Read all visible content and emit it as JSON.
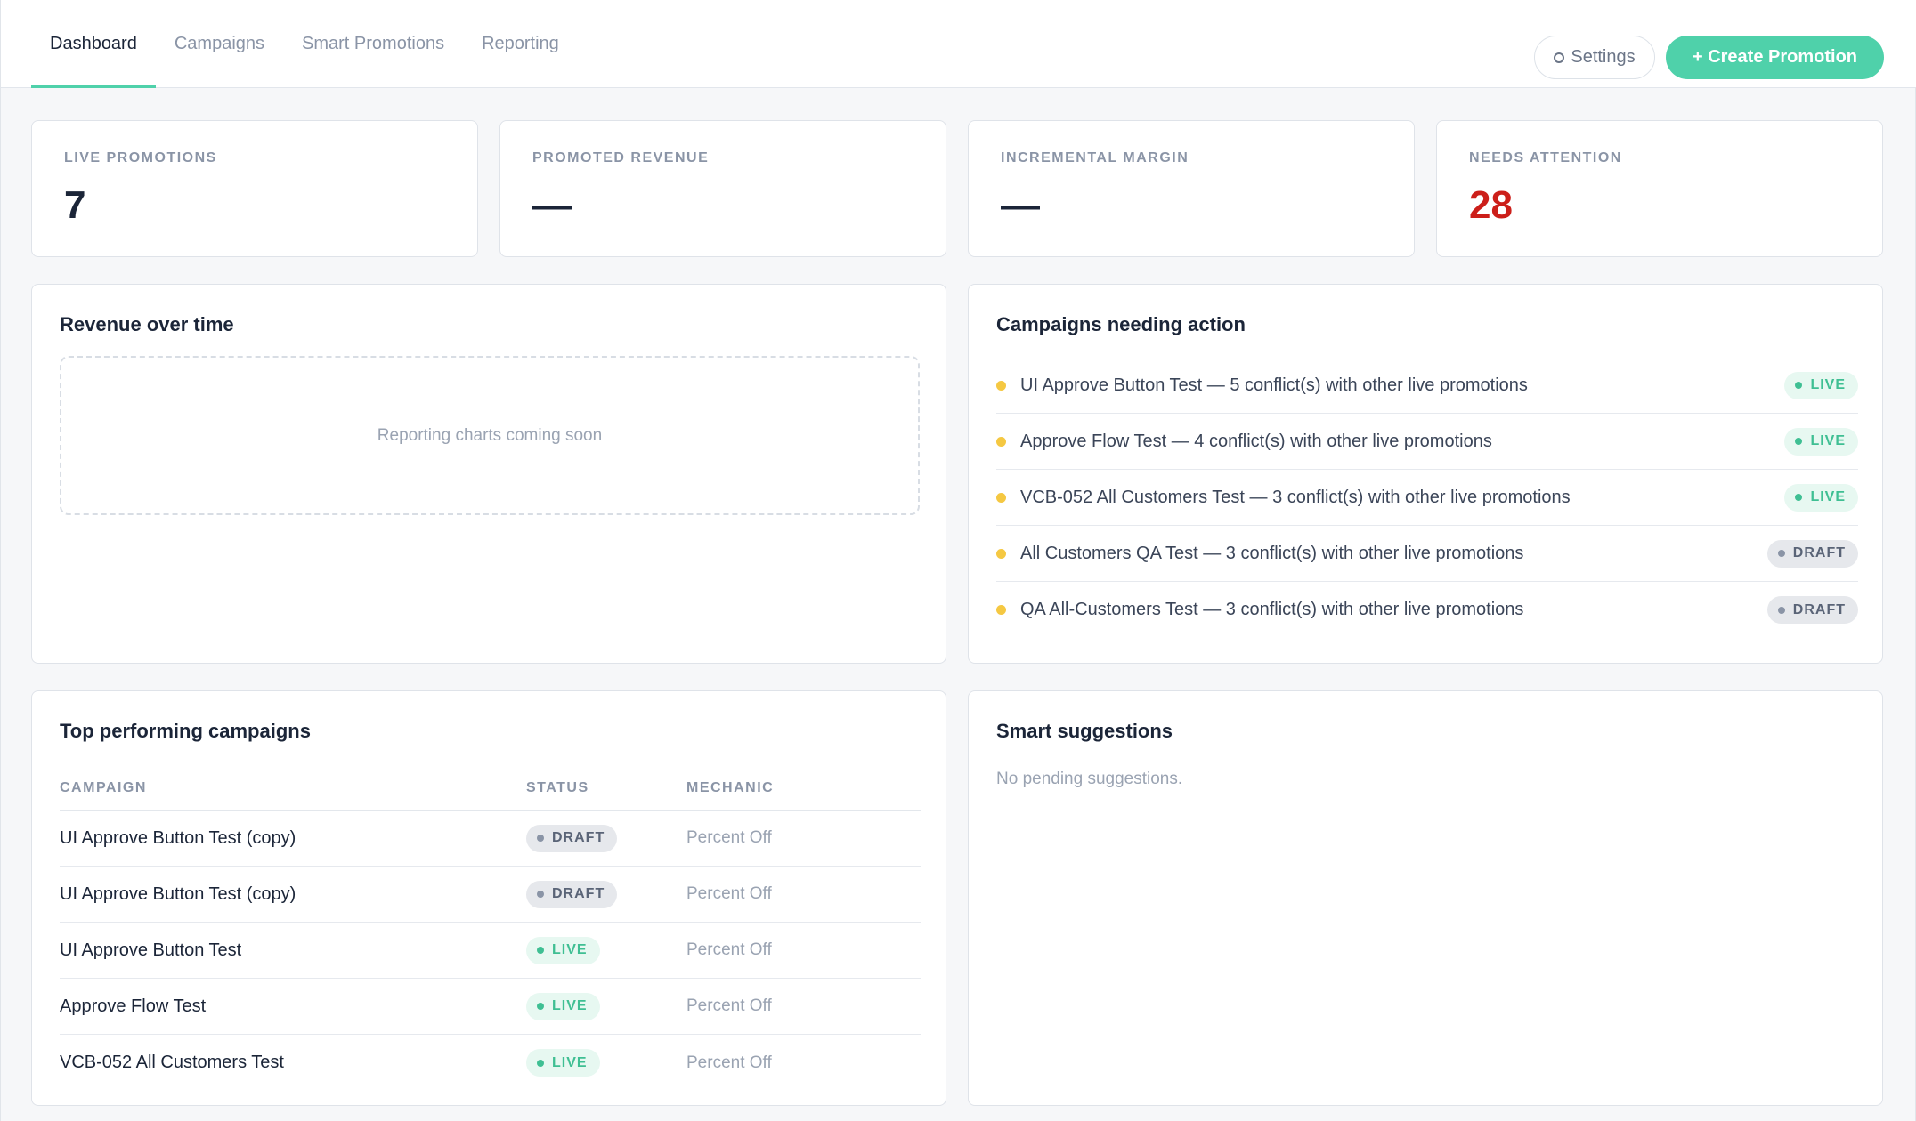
{
  "nav": {
    "tabs": [
      {
        "label": "Dashboard",
        "active": true
      },
      {
        "label": "Campaigns",
        "active": false
      },
      {
        "label": "Smart Promotions",
        "active": false
      },
      {
        "label": "Reporting",
        "active": false
      }
    ],
    "settings_label": "Settings",
    "create_label": "+ Create Promotion"
  },
  "kpis": [
    {
      "label": "LIVE PROMOTIONS",
      "value": "7"
    },
    {
      "label": "PROMOTED REVENUE",
      "value": "—"
    },
    {
      "label": "INCREMENTAL MARGIN",
      "value": "—"
    },
    {
      "label": "NEEDS ATTENTION",
      "value": "28"
    }
  ],
  "revenue": {
    "title": "Revenue over time",
    "placeholder": "Reporting charts coming soon"
  },
  "needing_action": {
    "title": "Campaigns needing action",
    "items": [
      {
        "text": "UI Approve Button Test — 5 conflict(s) with other live promotions",
        "status": "LIVE"
      },
      {
        "text": "Approve Flow Test — 4 conflict(s) with other live promotions",
        "status": "LIVE"
      },
      {
        "text": "VCB-052 All Customers Test — 3 conflict(s) with other live promotions",
        "status": "LIVE"
      },
      {
        "text": "All Customers QA Test — 3 conflict(s) with other live promotions",
        "status": "DRAFT"
      },
      {
        "text": "QA All-Customers Test — 3 conflict(s) with other live promotions",
        "status": "DRAFT"
      }
    ]
  },
  "top_campaigns": {
    "title": "Top performing campaigns",
    "columns": [
      "CAMPAIGN",
      "STATUS",
      "MECHANIC"
    ],
    "rows": [
      {
        "campaign": "UI Approve Button Test (copy)",
        "status": "DRAFT",
        "mechanic": "Percent Off"
      },
      {
        "campaign": "UI Approve Button Test (copy)",
        "status": "DRAFT",
        "mechanic": "Percent Off"
      },
      {
        "campaign": "UI Approve Button Test",
        "status": "LIVE",
        "mechanic": "Percent Off"
      },
      {
        "campaign": "Approve Flow Test",
        "status": "LIVE",
        "mechanic": "Percent Off"
      },
      {
        "campaign": "VCB-052 All Customers Test",
        "status": "LIVE",
        "mechanic": "Percent Off"
      }
    ]
  },
  "smart_suggestions": {
    "title": "Smart suggestions",
    "empty": "No pending suggestions."
  },
  "colors": {
    "accent": "#4fd1aa",
    "alert": "#cc1f1a",
    "live_text": "#3fbf93",
    "warning_dot": "#f5c842"
  }
}
